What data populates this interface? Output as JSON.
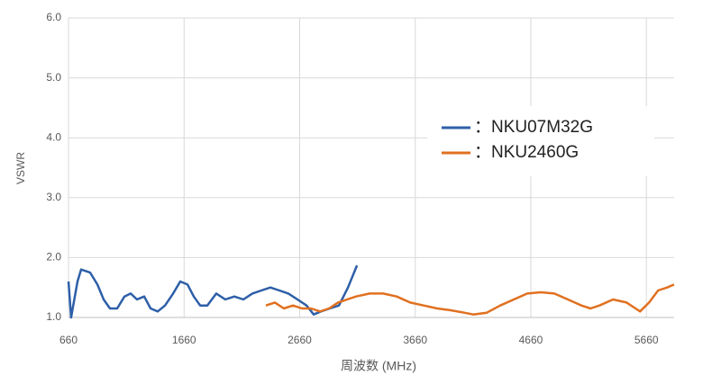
{
  "chart_data": {
    "type": "line",
    "x_label": "周波数 (MHz)",
    "y_label": "VSWR",
    "xlim": [
      660,
      5900
    ],
    "xticks": [
      660,
      1660,
      2660,
      3660,
      4660,
      5660
    ],
    "ylim": [
      1,
      6
    ],
    "yticks": [
      {
        "value": 1,
        "label": "1.0"
      },
      {
        "value": 2,
        "label": "2.0"
      },
      {
        "value": 3,
        "label": "3.0"
      },
      {
        "value": 4,
        "label": "4.0"
      },
      {
        "value": 5,
        "label": "5.0"
      },
      {
        "value": 6,
        "label": "6.0"
      }
    ],
    "grid": true,
    "series": [
      {
        "name": "：NKU07M32G",
        "color": "#2e5fa8",
        "x": [
          660,
          683,
          738,
          769,
          847,
          910,
          964,
          1019,
          1081,
          1144,
          1198,
          1253,
          1315,
          1370,
          1432,
          1495,
          1565,
          1627,
          1690,
          1744,
          1799,
          1861,
          1939,
          2017,
          2095,
          2173,
          2251,
          2329,
          2407,
          2485,
          2563,
          2641,
          2719,
          2782,
          2844,
          2922,
          3000,
          3078,
          3156
        ],
        "values": [
          1.6,
          1.0,
          1.6,
          1.8,
          1.75,
          1.55,
          1.3,
          1.15,
          1.15,
          1.35,
          1.4,
          1.3,
          1.35,
          1.15,
          1.1,
          1.2,
          1.4,
          1.6,
          1.55,
          1.35,
          1.2,
          1.2,
          1.4,
          1.3,
          1.35,
          1.3,
          1.4,
          1.45,
          1.5,
          1.45,
          1.4,
          1.3,
          1.2,
          1.05,
          1.1,
          1.15,
          1.2,
          1.5,
          1.87
        ]
      },
      {
        "name": "：NKU2460G",
        "color": "#e07020",
        "x": [
          2368,
          2446,
          2524,
          2602,
          2680,
          2758,
          2836,
          2914,
          2992,
          3070,
          3148,
          3265,
          3382,
          3499,
          3616,
          3733,
          3850,
          3967,
          4084,
          4162,
          4279,
          4396,
          4513,
          4630,
          4747,
          4864,
          4981,
          5098,
          5176,
          5254,
          5371,
          5488,
          5566,
          5605,
          5683,
          5761,
          5839,
          5900
        ],
        "values": [
          1.2,
          1.25,
          1.15,
          1.2,
          1.15,
          1.15,
          1.1,
          1.15,
          1.25,
          1.3,
          1.35,
          1.4,
          1.4,
          1.35,
          1.25,
          1.2,
          1.15,
          1.12,
          1.08,
          1.05,
          1.08,
          1.2,
          1.3,
          1.4,
          1.42,
          1.4,
          1.3,
          1.2,
          1.15,
          1.2,
          1.3,
          1.25,
          1.15,
          1.1,
          1.25,
          1.45,
          1.5,
          1.55
        ]
      }
    ]
  }
}
